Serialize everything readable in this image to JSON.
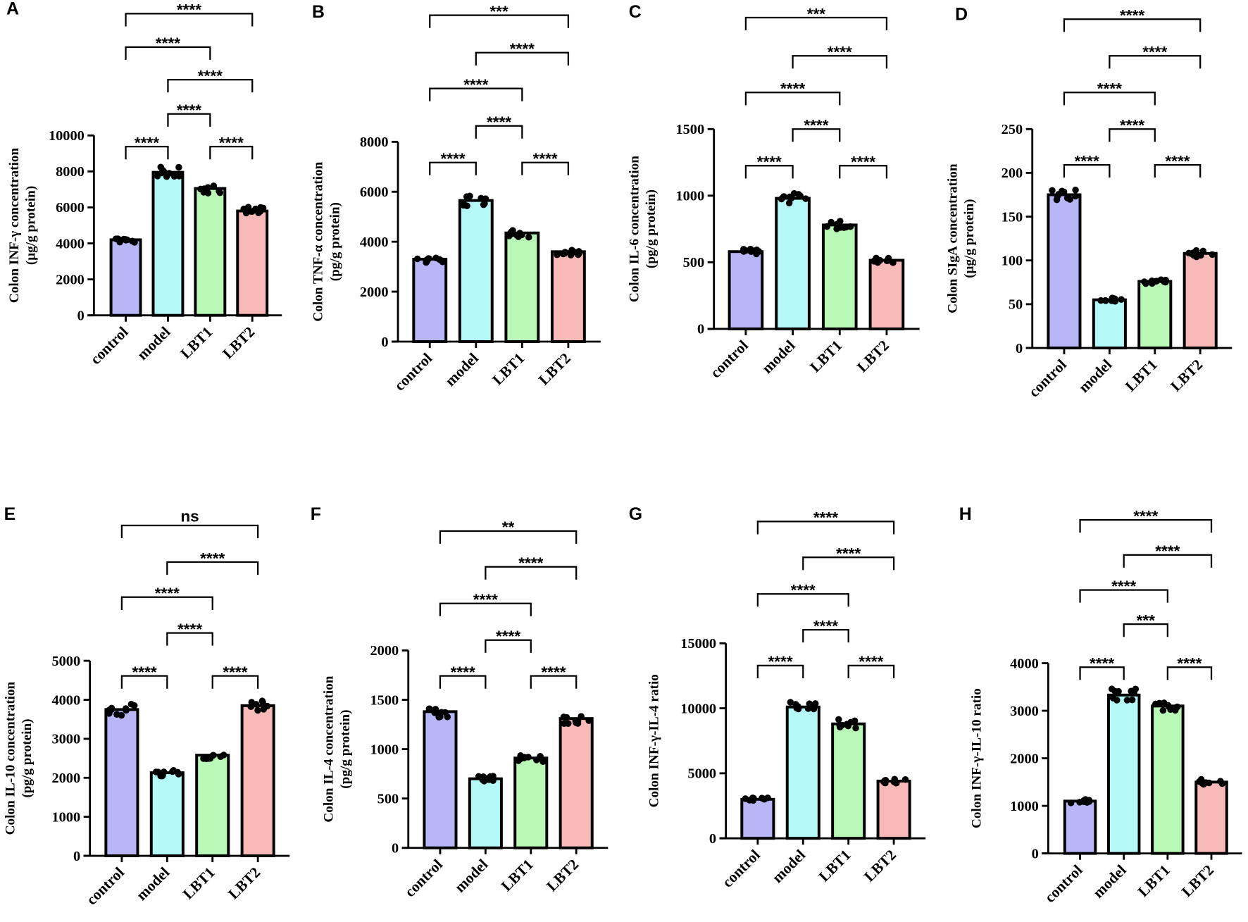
{
  "chart_data": [
    {
      "panel": "A",
      "type": "bar",
      "ylabel": [
        "Colon INF-γ concentration",
        "(μg/g protein)"
      ],
      "categories": [
        "control",
        "model",
        "LBT1",
        "LBT2"
      ],
      "values": [
        4200,
        7950,
        7050,
        5800
      ],
      "ylim": [
        0,
        10000
      ],
      "yticks": [
        "0",
        "2000",
        "4000",
        "6000",
        "8000",
        "10000"
      ],
      "comparisons": [
        {
          "pair": [
            0,
            1
          ],
          "label": "****",
          "level": 0
        },
        {
          "pair": [
            2,
            3
          ],
          "label": "****",
          "level": 0
        },
        {
          "pair": [
            1,
            2
          ],
          "label": "****",
          "level": 1
        },
        {
          "pair": [
            1,
            3
          ],
          "label": "****",
          "level": 2
        },
        {
          "pair": [
            0,
            2
          ],
          "label": "****",
          "level": 3
        },
        {
          "pair": [
            0,
            3
          ],
          "label": "****",
          "level": 4
        }
      ]
    },
    {
      "panel": "B",
      "type": "bar",
      "ylabel": [
        "Colon TNF-α concentration",
        "(pg/g protein)"
      ],
      "categories": [
        "control",
        "model",
        "LBT1",
        "LBT2"
      ],
      "values": [
        3300,
        5650,
        4350,
        3600
      ],
      "ylim": [
        0,
        8000
      ],
      "yticks": [
        "0",
        "2000",
        "4000",
        "6000",
        "8000"
      ],
      "comparisons": [
        {
          "pair": [
            0,
            1
          ],
          "label": "****",
          "level": 0
        },
        {
          "pair": [
            2,
            3
          ],
          "label": "****",
          "level": 0
        },
        {
          "pair": [
            1,
            2
          ],
          "label": "****",
          "level": 1
        },
        {
          "pair": [
            0,
            2
          ],
          "label": "****",
          "level": 2
        },
        {
          "pair": [
            1,
            3
          ],
          "label": "****",
          "level": 3
        },
        {
          "pair": [
            0,
            3
          ],
          "label": "***",
          "level": 4
        }
      ]
    },
    {
      "panel": "C",
      "type": "bar",
      "ylabel": [
        "Colon IL-6 concentration",
        "(pg/g protein)"
      ],
      "categories": [
        "control",
        "model",
        "LBT1",
        "LBT2"
      ],
      "values": [
        580,
        980,
        780,
        515
      ],
      "ylim": [
        0,
        1500
      ],
      "yticks": [
        "0",
        "500",
        "1000",
        "1500"
      ],
      "comparisons": [
        {
          "pair": [
            0,
            1
          ],
          "label": "****",
          "level": 0
        },
        {
          "pair": [
            2,
            3
          ],
          "label": "****",
          "level": 0
        },
        {
          "pair": [
            1,
            2
          ],
          "label": "****",
          "level": 1
        },
        {
          "pair": [
            0,
            2
          ],
          "label": "****",
          "level": 2
        },
        {
          "pair": [
            1,
            3
          ],
          "label": "****",
          "level": 3
        },
        {
          "pair": [
            0,
            3
          ],
          "label": "***",
          "level": 4
        }
      ]
    },
    {
      "panel": "D",
      "type": "bar",
      "ylabel": [
        "Colon SIgA concentration",
        "(μg/g protein)"
      ],
      "categories": [
        "control",
        "model",
        "LBT1",
        "LBT2"
      ],
      "values": [
        175,
        55,
        76,
        108
      ],
      "ylim": [
        0,
        250
      ],
      "yticks": [
        "0",
        "50",
        "100",
        "150",
        "200",
        "250"
      ],
      "comparisons": [
        {
          "pair": [
            0,
            1
          ],
          "label": "****",
          "level": 0
        },
        {
          "pair": [
            2,
            3
          ],
          "label": "****",
          "level": 0
        },
        {
          "pair": [
            1,
            2
          ],
          "label": "****",
          "level": 1
        },
        {
          "pair": [
            0,
            2
          ],
          "label": "****",
          "level": 2
        },
        {
          "pair": [
            1,
            3
          ],
          "label": "****",
          "level": 3
        },
        {
          "pair": [
            0,
            3
          ],
          "label": "****",
          "level": 4
        }
      ]
    },
    {
      "panel": "E",
      "type": "bar",
      "ylabel": [
        "Colon IL-10 concentration",
        "(pg/g protein)"
      ],
      "categories": [
        "control",
        "model",
        "LBT1",
        "LBT2"
      ],
      "values": [
        3750,
        2130,
        2580,
        3850
      ],
      "ylim": [
        0,
        5000
      ],
      "yticks": [
        "0",
        "1000",
        "2000",
        "3000",
        "4000",
        "5000"
      ],
      "comparisons": [
        {
          "pair": [
            0,
            1
          ],
          "label": "****",
          "level": 0
        },
        {
          "pair": [
            2,
            3
          ],
          "label": "****",
          "level": 0
        },
        {
          "pair": [
            1,
            2
          ],
          "label": "****",
          "level": 1
        },
        {
          "pair": [
            0,
            2
          ],
          "label": "****",
          "level": 2
        },
        {
          "pair": [
            1,
            3
          ],
          "label": "****",
          "level": 3
        },
        {
          "pair": [
            0,
            3
          ],
          "label": "ns",
          "level": 4
        }
      ]
    },
    {
      "panel": "F",
      "type": "bar",
      "ylabel": [
        "Colon IL-4 concentration",
        "(pg/g protein)"
      ],
      "categories": [
        "control",
        "model",
        "LBT1",
        "LBT2"
      ],
      "values": [
        1380,
        700,
        910,
        1310
      ],
      "ylim": [
        0,
        2000
      ],
      "yticks": [
        "0",
        "500",
        "1000",
        "1500",
        "2000"
      ],
      "comparisons": [
        {
          "pair": [
            0,
            1
          ],
          "label": "****",
          "level": 0
        },
        {
          "pair": [
            2,
            3
          ],
          "label": "****",
          "level": 0
        },
        {
          "pair": [
            1,
            2
          ],
          "label": "****",
          "level": 1
        },
        {
          "pair": [
            0,
            2
          ],
          "label": "****",
          "level": 2
        },
        {
          "pair": [
            1,
            3
          ],
          "label": "****",
          "level": 3
        },
        {
          "pair": [
            0,
            3
          ],
          "label": "**",
          "level": 4
        }
      ]
    },
    {
      "panel": "G",
      "type": "bar",
      "ylabel": [
        "Colon INF-γ-IL-4 ratio"
      ],
      "categories": [
        "control",
        "model",
        "LBT1",
        "LBT2"
      ],
      "values": [
        3000,
        10100,
        8800,
        4400
      ],
      "ylim": [
        0,
        15000
      ],
      "yticks": [
        "0",
        "5000",
        "10000",
        "15000"
      ],
      "comparisons": [
        {
          "pair": [
            0,
            1
          ],
          "label": "****",
          "level": 0
        },
        {
          "pair": [
            2,
            3
          ],
          "label": "****",
          "level": 0
        },
        {
          "pair": [
            1,
            2
          ],
          "label": "****",
          "level": 1
        },
        {
          "pair": [
            0,
            2
          ],
          "label": "****",
          "level": 2
        },
        {
          "pair": [
            1,
            3
          ],
          "label": "****",
          "level": 3
        },
        {
          "pair": [
            0,
            3
          ],
          "label": "****",
          "level": 4
        }
      ]
    },
    {
      "panel": "H",
      "type": "bar",
      "ylabel": [
        "Colon INF-γ-IL-10 ratio"
      ],
      "categories": [
        "control",
        "model",
        "LBT1",
        "LBT2"
      ],
      "values": [
        1100,
        3330,
        3100,
        1500
      ],
      "ylim": [
        0,
        4000
      ],
      "yticks": [
        "0",
        "1000",
        "2000",
        "3000",
        "4000"
      ],
      "comparisons": [
        {
          "pair": [
            0,
            1
          ],
          "label": "****",
          "level": 0
        },
        {
          "pair": [
            2,
            3
          ],
          "label": "****",
          "level": 0
        },
        {
          "pair": [
            1,
            2
          ],
          "label": "***",
          "level": 1
        },
        {
          "pair": [
            0,
            2
          ],
          "label": "****",
          "level": 2
        },
        {
          "pair": [
            1,
            3
          ],
          "label": "****",
          "level": 3
        },
        {
          "pair": [
            0,
            3
          ],
          "label": "****",
          "level": 4
        }
      ]
    }
  ],
  "colors": [
    "#b9b6f7",
    "#b4f8f8",
    "#b9f8b6",
    "#f8b9b9"
  ]
}
